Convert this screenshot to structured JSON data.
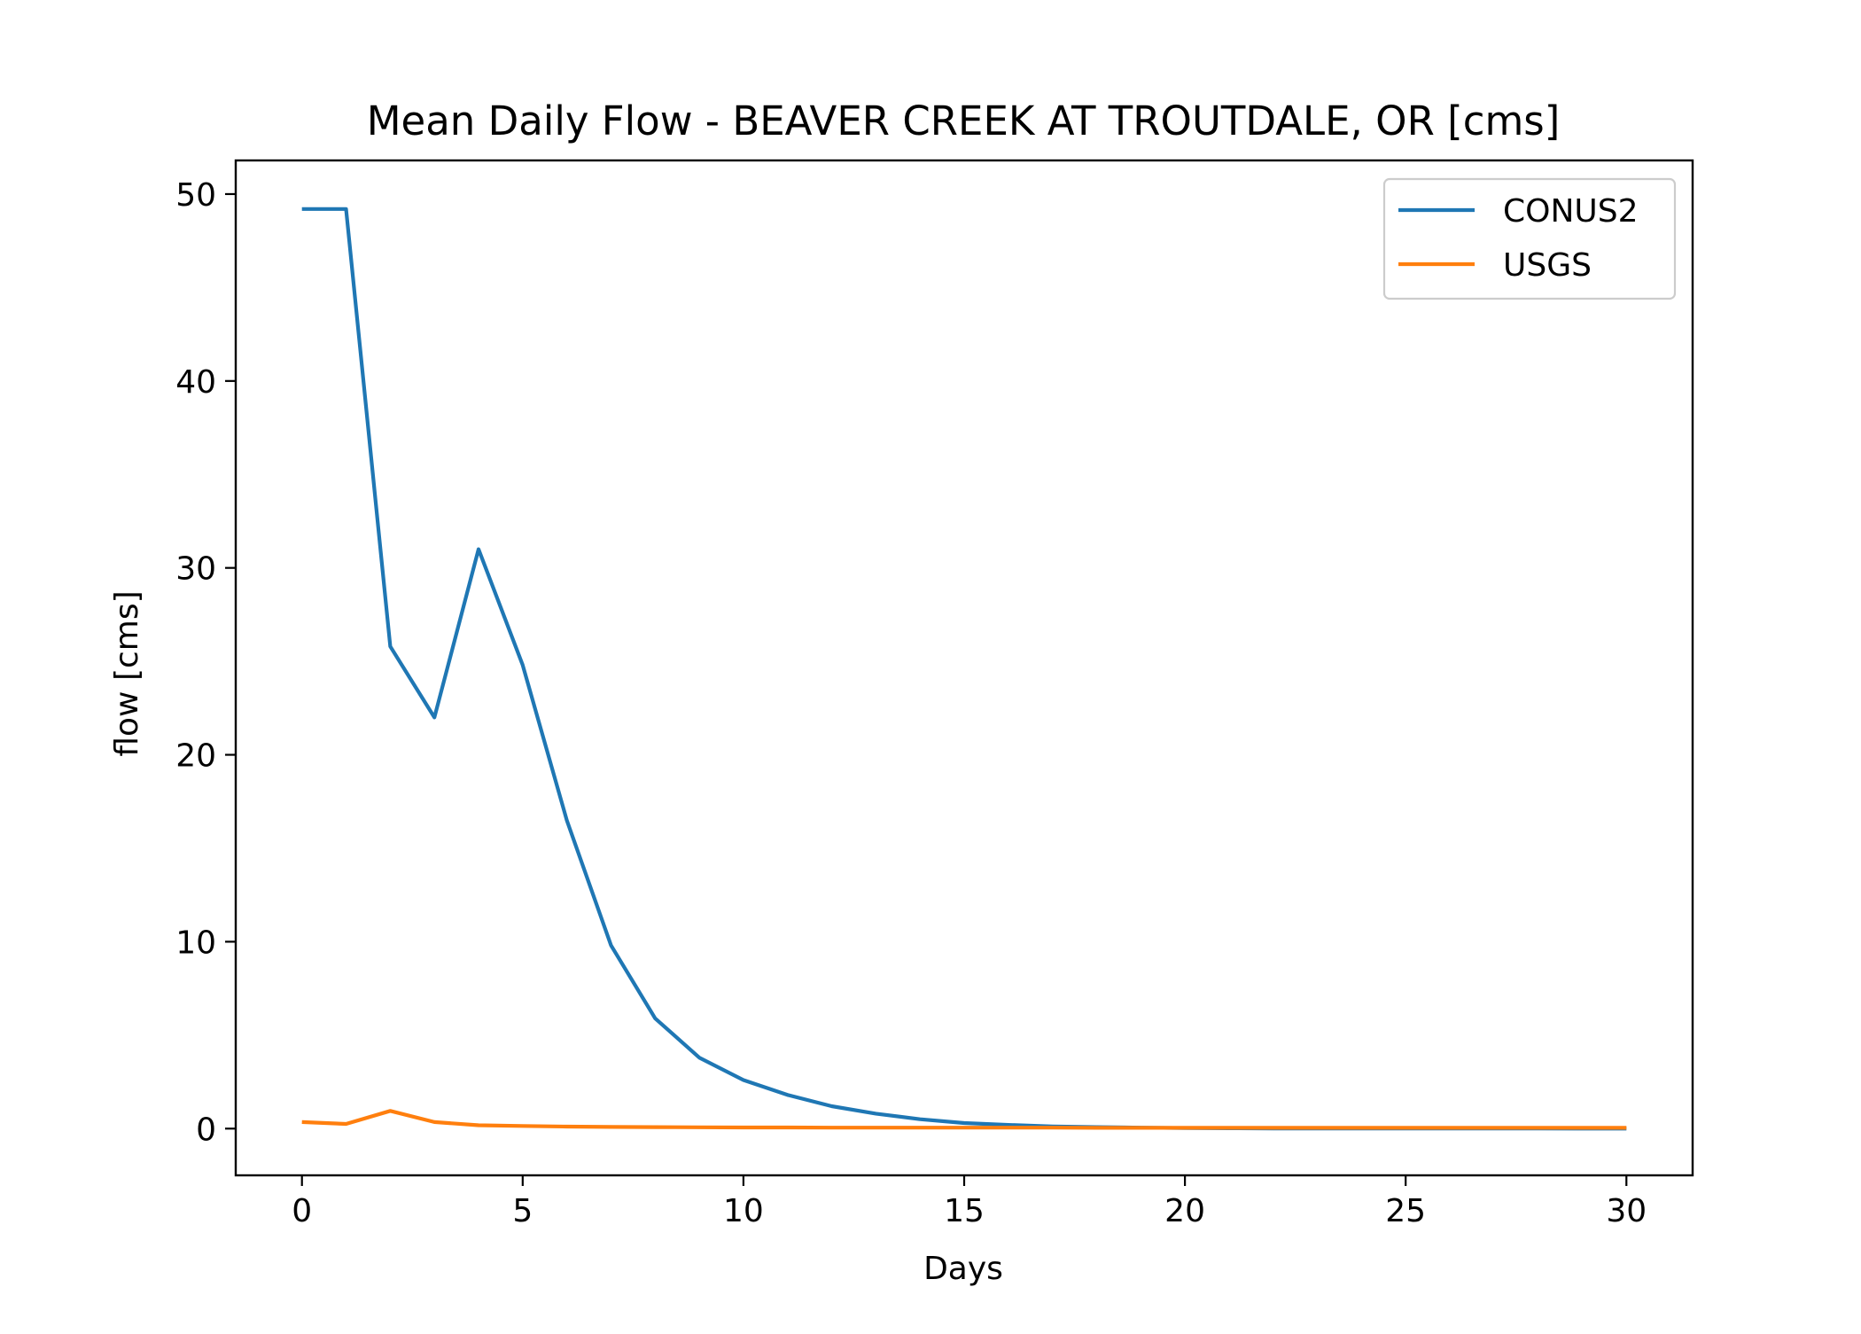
{
  "chart_data": {
    "type": "line",
    "title": "Mean Daily Flow - BEAVER CREEK AT TROUTDALE, OR [cms]",
    "xlabel": "Days",
    "ylabel": "flow [cms]",
    "xlim": [
      -1.5,
      31.5
    ],
    "ylim": [
      -2.5,
      51.8
    ],
    "xticks": [
      0,
      5,
      10,
      15,
      20,
      25,
      30
    ],
    "yticks": [
      0,
      10,
      20,
      30,
      40,
      50
    ],
    "grid": false,
    "legend_position": "upper-right",
    "x": [
      0,
      1,
      2,
      3,
      4,
      5,
      6,
      7,
      8,
      9,
      10,
      11,
      12,
      13,
      14,
      15,
      16,
      17,
      18,
      19,
      20,
      21,
      22,
      23,
      24,
      25,
      26,
      27,
      28,
      29,
      30
    ],
    "series": [
      {
        "name": "CONUS2",
        "color": "#1f77b4",
        "values": [
          49.2,
          49.2,
          25.8,
          22.0,
          31.0,
          24.8,
          16.5,
          9.8,
          5.9,
          3.8,
          2.6,
          1.8,
          1.2,
          0.8,
          0.5,
          0.3,
          0.2,
          0.12,
          0.08,
          0.05,
          0.03,
          0.02,
          0.01,
          0.01,
          0.01,
          0.01,
          0.01,
          0.01,
          0.01,
          0.0,
          0.0
        ]
      },
      {
        "name": "USGS",
        "color": "#ff7f0e",
        "values": [
          0.35,
          0.25,
          0.95,
          0.35,
          0.18,
          0.14,
          0.11,
          0.09,
          0.08,
          0.07,
          0.06,
          0.06,
          0.05,
          0.05,
          0.05,
          0.05,
          0.05,
          0.05,
          0.04,
          0.04,
          0.04,
          0.04,
          0.04,
          0.04,
          0.04,
          0.04,
          0.04,
          0.04,
          0.04,
          0.04,
          0.04
        ]
      }
    ]
  }
}
